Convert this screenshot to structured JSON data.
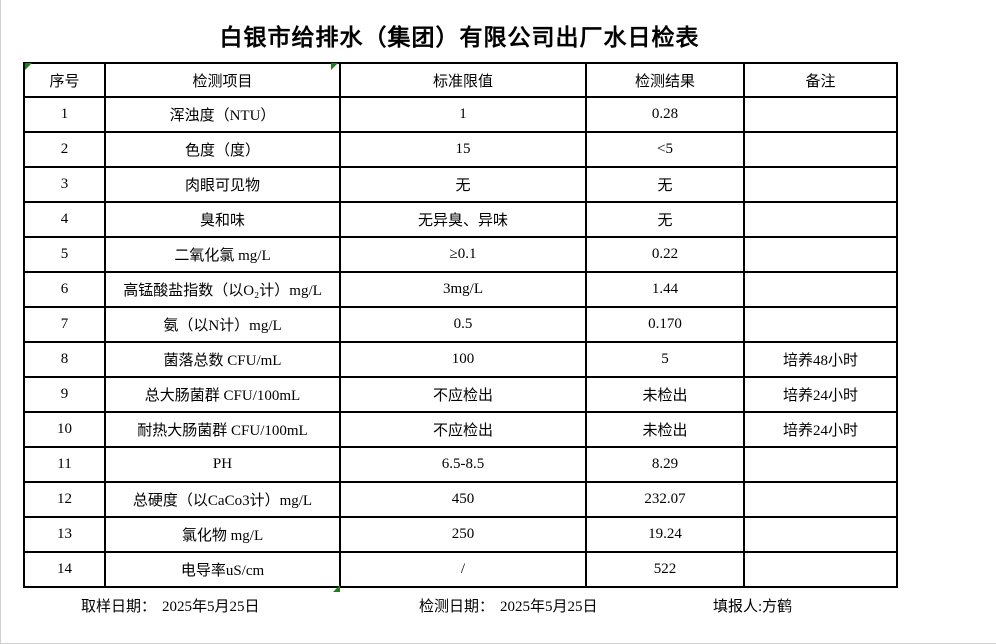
{
  "title": "白银市给排水（集团）有限公司出厂水日检表",
  "table": {
    "headers": [
      "序号",
      "检测项目",
      "标准限值",
      "检测结果",
      "备注"
    ],
    "rows": [
      {
        "no": "1",
        "item": "浑浊度（NTU）",
        "limit": "1",
        "result": "0.28",
        "note": ""
      },
      {
        "no": "2",
        "item": "色度（度）",
        "limit": "15",
        "result": "<5",
        "note": ""
      },
      {
        "no": "3",
        "item": "肉眼可见物",
        "limit": "无",
        "result": "无",
        "note": ""
      },
      {
        "no": "4",
        "item": "臭和味",
        "limit": "无异臭、异味",
        "result": "无",
        "note": ""
      },
      {
        "no": "5",
        "item": "二氧化氯 mg/L",
        "limit": "≥0.1",
        "result": "0.22",
        "note": ""
      },
      {
        "no": "6",
        "item": "高锰酸盐指数（以O₂计）mg/L",
        "limit": "3mg/L",
        "result": "1.44",
        "note": ""
      },
      {
        "no": "7",
        "item": "氨（以N计）mg/L",
        "limit": "0.5",
        "result": "0.170",
        "note": ""
      },
      {
        "no": "8",
        "item": "菌落总数 CFU/mL",
        "limit": "100",
        "result": "5",
        "note": "培养48小时"
      },
      {
        "no": "9",
        "item": "总大肠菌群 CFU/100mL",
        "limit": "不应检出",
        "result": "未检出",
        "note": "培养24小时"
      },
      {
        "no": "10",
        "item": "耐热大肠菌群 CFU/100mL",
        "limit": "不应检出",
        "result": "未检出",
        "note": "培养24小时"
      },
      {
        "no": "11",
        "item": "PH",
        "limit": "6.5-8.5",
        "result": "8.29",
        "note": ""
      },
      {
        "no": "12",
        "item": "总硬度（以CaCo3计）mg/L",
        "limit": "450",
        "result": "232.07",
        "note": ""
      },
      {
        "no": "13",
        "item": "氯化物 mg/L",
        "limit": "250",
        "result": "19.24",
        "note": ""
      },
      {
        "no": "14",
        "item": "电导率uS/cm",
        "limit": "/",
        "result": "522",
        "note": ""
      }
    ]
  },
  "footer": {
    "sampling_date_label": "取样日期：",
    "sampling_date": "2025年5月25日",
    "test_date_label": "检测日期：",
    "test_date": "2025年5月25日",
    "reporter_label": "填报人:",
    "reporter": "方鹤"
  },
  "colors": {
    "border": "#000000",
    "marker_green": "#1e7e1e",
    "background": "#ffffff"
  }
}
